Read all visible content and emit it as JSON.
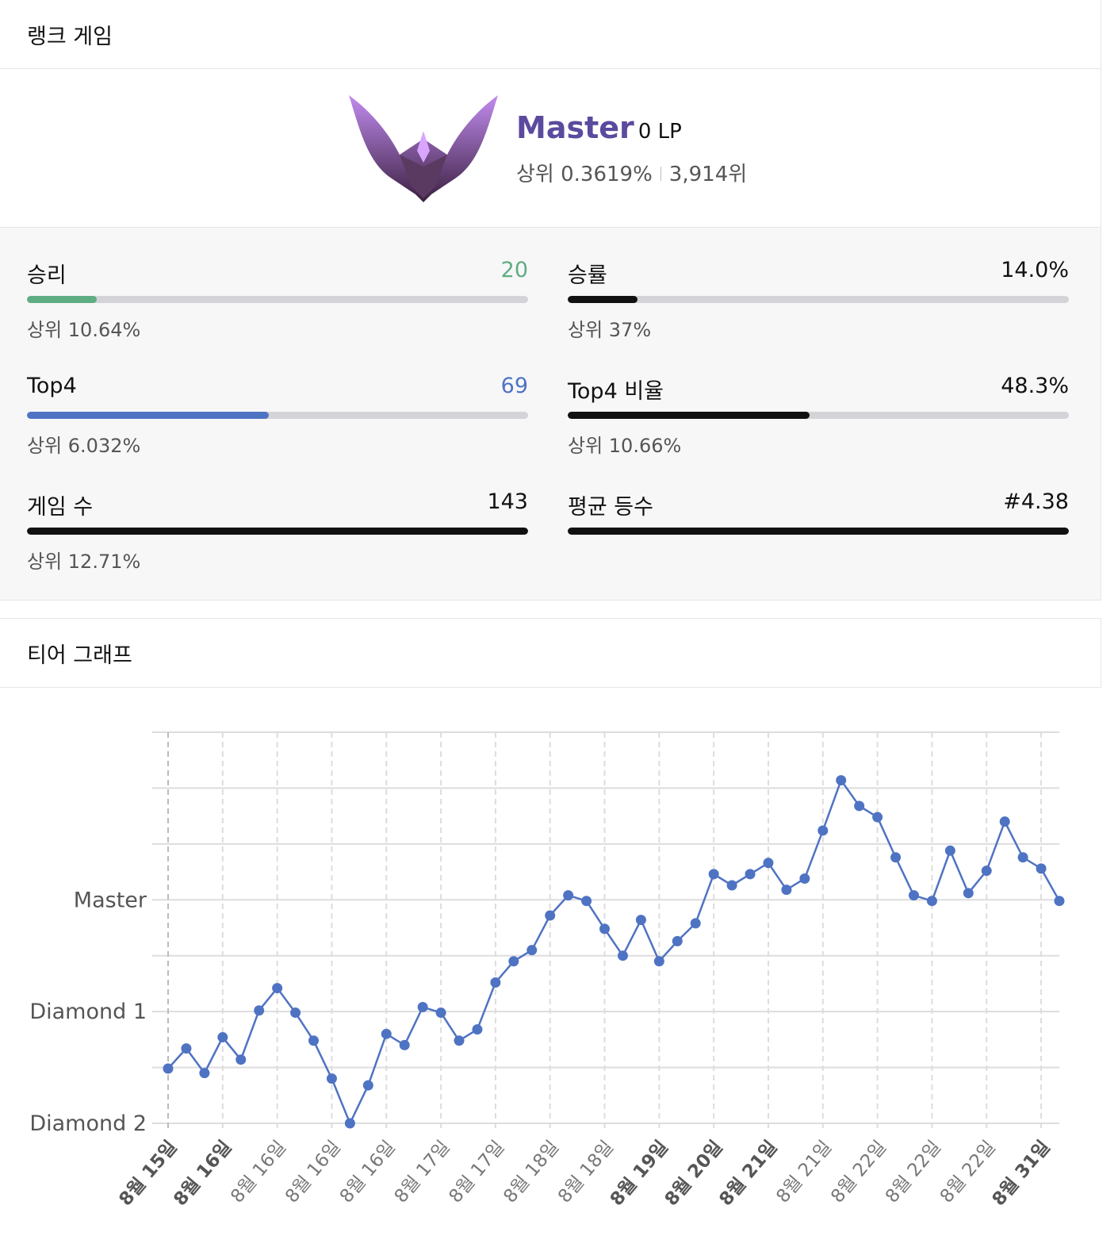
{
  "header": {
    "title": "랭크 게임"
  },
  "profile": {
    "tier": "Master",
    "lp": "0 LP",
    "rank_pct": "상위 0.3619%",
    "rank": "3,914위"
  },
  "stats": [
    {
      "label": "승리",
      "value": "20",
      "sub": "상위 10.64%",
      "fill": 14.0,
      "color": "#5fad82"
    },
    {
      "label": "승률",
      "value": "14.0%",
      "sub": "상위 37%",
      "fill": 14.0,
      "color": "#111111"
    },
    {
      "label": "Top4",
      "value": "69",
      "sub": "상위 6.032%",
      "fill": 48.3,
      "color": "#4f73c3"
    },
    {
      "label": "Top4 비율",
      "value": "48.3%",
      "sub": "상위 10.66%",
      "fill": 48.3,
      "color": "#111111"
    },
    {
      "label": "게임 수",
      "value": "143",
      "sub": "상위 12.71%",
      "fill": 100,
      "color": "#111111"
    },
    {
      "label": "평균 등수",
      "value": "#4.38",
      "sub": null,
      "fill": 100,
      "color": "#111111"
    }
  ],
  "chart_section": {
    "title": "티어 그래프"
  },
  "chart_data": {
    "type": "line",
    "color": "#4f73c3",
    "categories": [
      "8월 15일",
      null,
      null,
      "8월 16일",
      null,
      null,
      "8월 16일",
      null,
      null,
      "8월 16일",
      null,
      null,
      "8월 16일",
      null,
      null,
      "8월 17일",
      null,
      null,
      "8월 17일",
      null,
      null,
      "8월 18일",
      null,
      null,
      "8월 18일",
      null,
      null,
      "8월 19일",
      null,
      null,
      "8월 20일",
      null,
      null,
      "8월 21일",
      null,
      null,
      "8월 21일",
      null,
      null,
      "8월 22일",
      null,
      null,
      "8월 22일",
      null,
      null,
      "8월 22일",
      null,
      null,
      "8월 31일",
      null
    ],
    "bold_categories": [
      0,
      3,
      27,
      30,
      33,
      48
    ],
    "values": [
      49,
      67,
      45,
      77,
      57,
      101,
      121,
      99,
      74,
      40,
      0,
      34,
      80,
      70,
      104,
      99,
      74,
      84,
      126,
      145,
      155,
      186,
      204,
      199,
      174,
      150,
      182,
      145,
      163,
      179,
      223,
      213,
      223,
      233,
      209,
      219,
      262,
      307,
      284,
      274,
      238,
      204,
      199,
      244,
      206,
      226,
      270,
      238,
      228,
      199
    ],
    "ylim": [
      0,
      350
    ],
    "yticks": [
      {
        "value": 0,
        "label": "Diamond 2"
      },
      {
        "value": 50,
        "label": null
      },
      {
        "value": 100,
        "label": "Diamond 1"
      },
      {
        "value": 150,
        "label": null
      },
      {
        "value": 200,
        "label": "Master"
      },
      {
        "value": 250,
        "label": null
      },
      {
        "value": 300,
        "label": null
      },
      {
        "value": 350,
        "label": null
      }
    ],
    "grid": true
  }
}
